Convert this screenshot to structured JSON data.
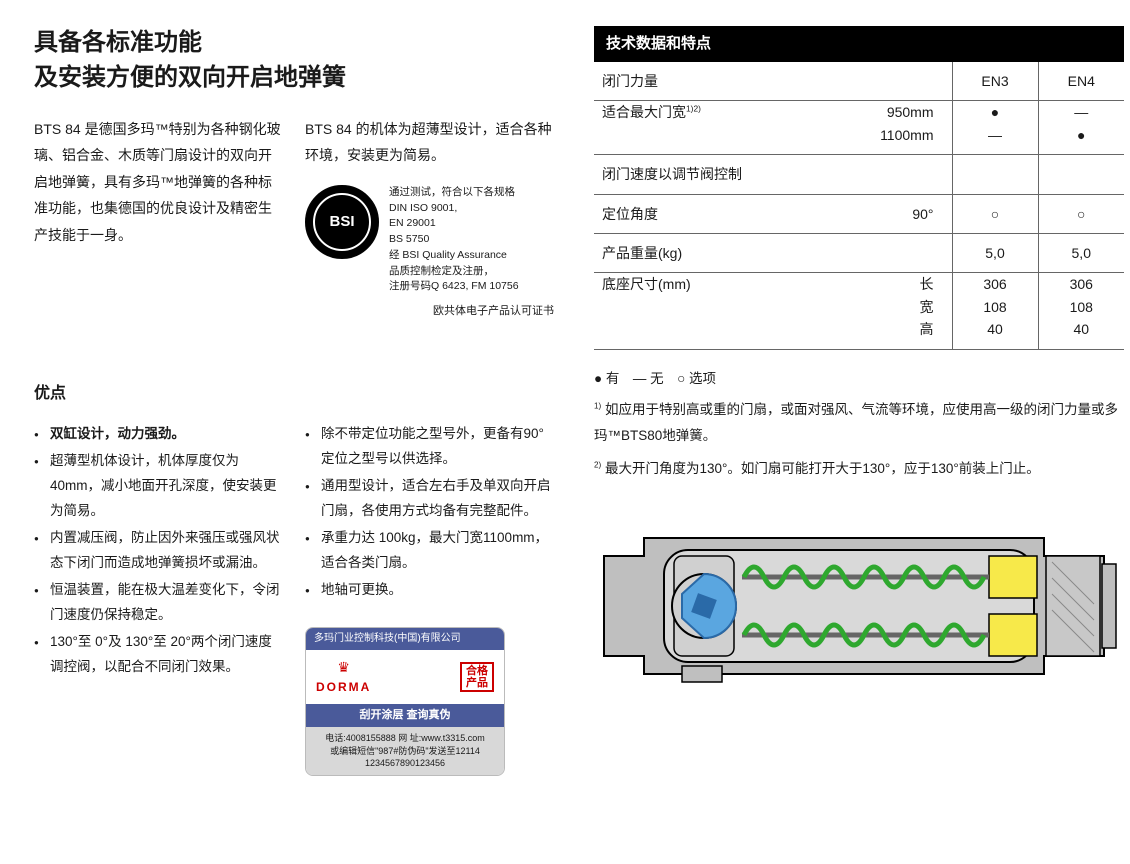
{
  "title_line1": "具备各标准功能",
  "title_line2": "及安装方便的双向开启地弹簧",
  "intro_left": "BTS 84 是德国多玛™特别为各种钢化玻璃、铝合金、木质等门扇设计的双向开启地弹簧，具有多玛™地弹簧的各种标准功能，也集德国的优良设计及精密生产技能于一身。",
  "intro_right_top": "BTS 84 的机体为超薄型设计，适合各种环境，安装更为简易。",
  "bsi_logo_text": "BSI",
  "bsi_lines": [
    "通过测试，符合以下各规格",
    "DIN ISO 9001,",
    "EN 29001",
    "BS 5750",
    "经 BSI Quality Assurance",
    "品质控制检定及注册，",
    "注册号码Q 6423, FM 10756"
  ],
  "bsi_caption": "欧共体电子产品认可证书",
  "advantages_heading": "优点",
  "adv_col1": [
    "双缸设计，动力强劲。",
    "超薄型机体设计，机体厚度仅为40mm，减小地面开孔深度，使安装更为简易。",
    "内置减压阀，防止因外来强压或强风状态下闭门而造成地弹簧损坏或漏油。",
    "恒温装置，能在极大温差变化下，令闭门速度仍保持稳定。",
    "130°至 0°及 130°至 20°两个闭门速度调控阀，以配合不同闭门效果。"
  ],
  "adv_col2": [
    "除不带定位功能之型号外，更备有90°定位之型号以供选择。",
    "通用型设计，适合左右手及单双向开启门扇，各使用方式均备有完整配件。",
    "承重力达 100kg，最大门宽1100mm，适合各类门扇。",
    "地轴可更换。"
  ],
  "sticker": {
    "top": "多玛门业控制科技(中国)有限公司",
    "brand": "DORMA",
    "stamp": "合格\n产品",
    "strip": "刮开涂层 查询真伪",
    "tel": "电话:4008155888 网 址:www.t3315.com",
    "sms": "或编辑短信\"987#防伪码\"发送至12114",
    "code": "1234567890123456"
  },
  "table": {
    "header": "技术数据和特点",
    "col_en3": "EN3",
    "col_en4": "EN4",
    "rows": {
      "force_label": "闭门力量",
      "width_label": "适合最大门宽",
      "width_sup": "1)2)",
      "width_v1": "950mm",
      "width_v2": "1100mm",
      "speed_label": "闭门速度以调节阀控制",
      "angle_label": "定位角度",
      "angle_val": "90°",
      "weight_label": "产品重量(kg)",
      "weight_v": "5,0",
      "base_label": "底座尺寸(mm)",
      "base_len_l": "长",
      "base_len_v": "306",
      "base_wid_l": "宽",
      "base_wid_v": "108",
      "base_hgt_l": "高",
      "base_hgt_v": "40"
    },
    "marks": {
      "dot": "●",
      "dash": "—",
      "circle": "○"
    }
  },
  "legend": "● 有　— 无　○ 选项",
  "note1_prefix": "1)",
  "note1": "如应用于特别高或重的门扇，或面对强风、气流等环境，应使用高一级的闭门力量或多玛™BTS80地弹簧。",
  "note2_prefix": "2)",
  "note2": "最大开门角度为130°。如门扇可能打开大于130°，应于130°前装上门止。",
  "mech_colors": {
    "casing_fill": "#bfbfbf",
    "casing_stroke": "#000000",
    "inner_fill": "#d9d9d9",
    "spring_color": "#2fa82f",
    "block_color": "#f7e94a",
    "cam_color": "#5aa6e0",
    "cam_dark": "#2a6aa8",
    "hatch": "#888888"
  }
}
